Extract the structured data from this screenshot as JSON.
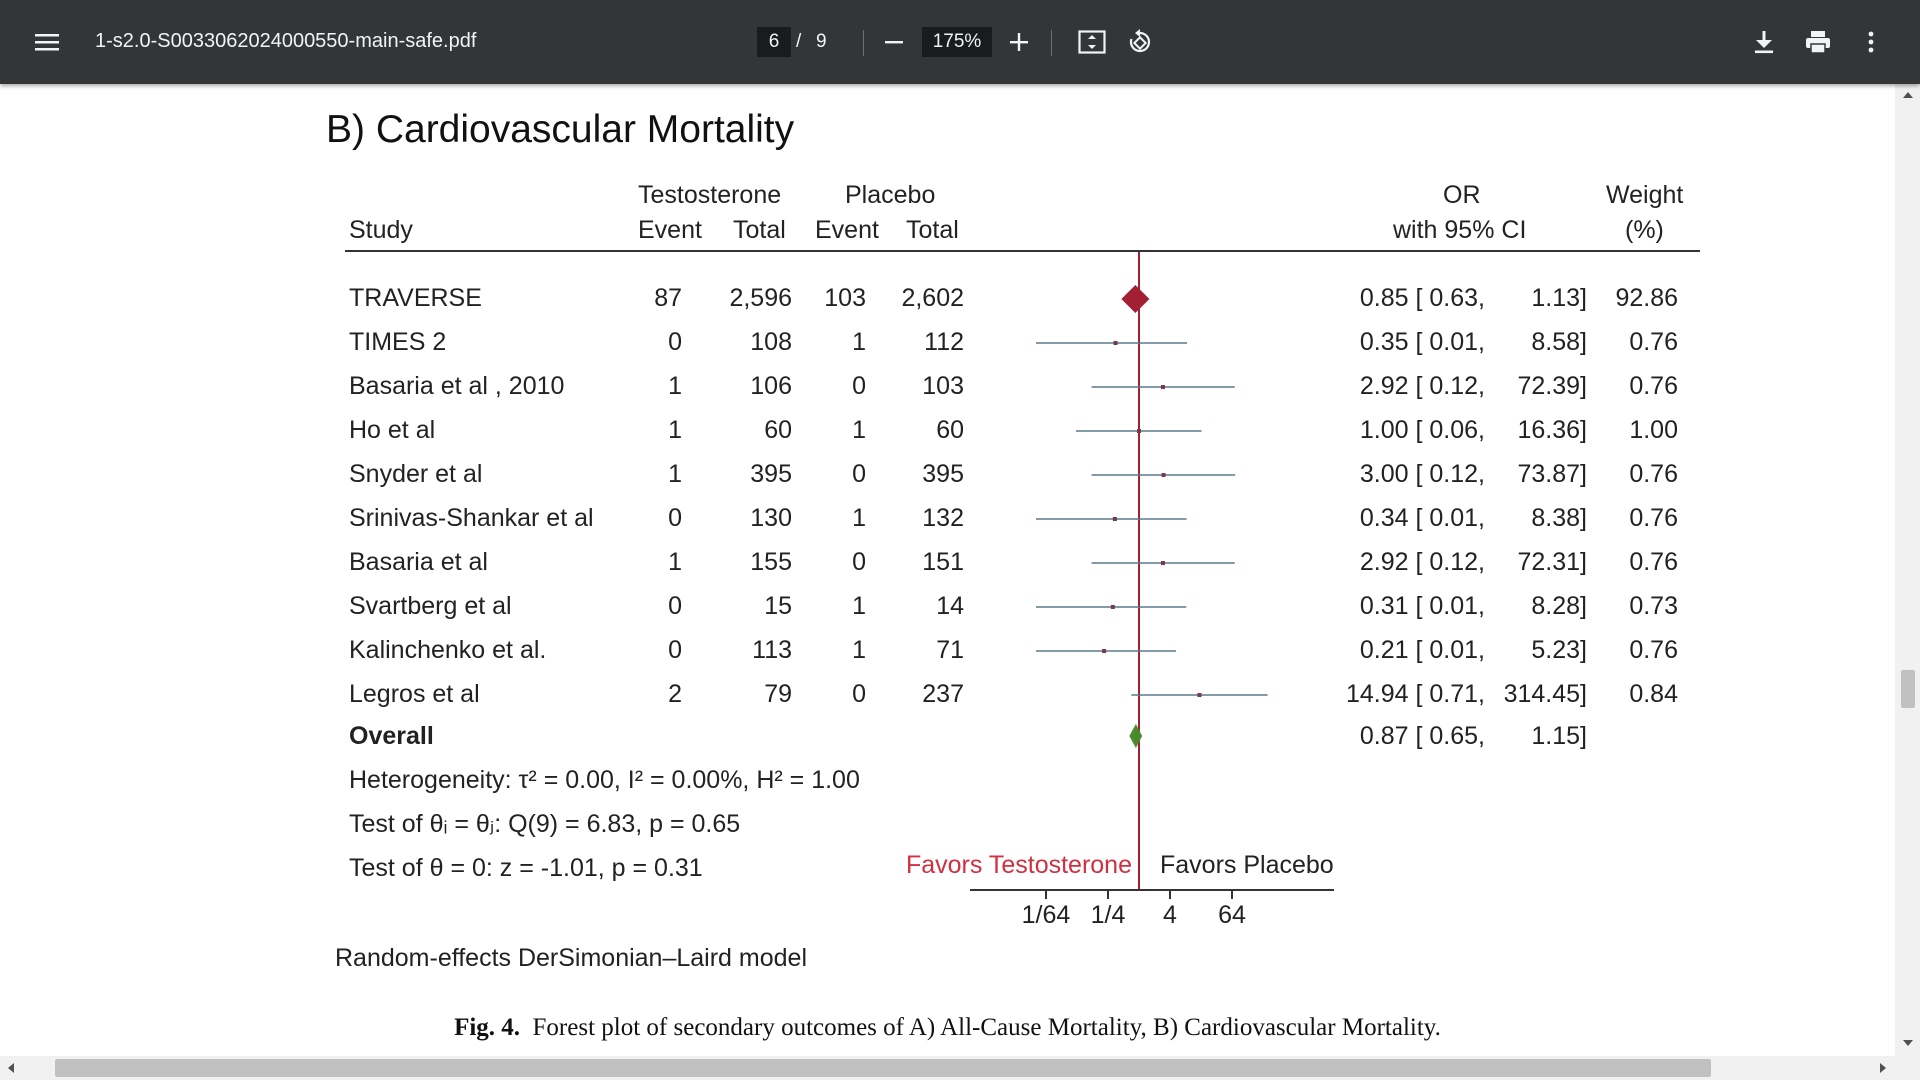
{
  "toolbar": {
    "title": "1-s2.0-S0033062024000550-main-safe.pdf",
    "page_current": "6",
    "page_separator": "/",
    "page_total": "9",
    "zoom": "175%",
    "icons": [
      "menu-icon",
      "zoom-out-icon",
      "zoom-in-icon",
      "fit-page-icon",
      "rotate-icon",
      "download-icon",
      "print-icon",
      "more-vert-icon"
    ]
  },
  "figure": {
    "heading": "B) Cardiovascular Mortality",
    "col_headers": {
      "testosterone": "Testosterone",
      "placebo": "Placebo",
      "study": "Study",
      "event1": "Event",
      "total1": "Total",
      "event2": "Event",
      "total2": "Total",
      "or": "OR",
      "ci": "with 95% CI",
      "weight": "Weight",
      "weight_unit": "(%)"
    },
    "overall_label": "Overall",
    "overall_or": "0.87 [ 0.65,",
    "overall_hi": "1.15]",
    "heterogeneity": "Heterogeneity: τ² = 0.00, I² = 0.00%, H² = 1.00",
    "test_equal": "Test of θᵢ = θⱼ: Q(9) = 6.83, p = 0.65",
    "test_zero": "Test of θ = 0: z = -1.01, p = 0.31",
    "favors_left": "Favors Testosterone",
    "favors_right": "Favors Placebo",
    "x_ticks": [
      "1/64",
      "1/4",
      "4",
      "64"
    ],
    "model_note": "Random-effects DerSimonian–Laird model",
    "caption_label": "Fig. 4.",
    "caption_text": "Forest plot of secondary outcomes of A) All-Cause Mortality, B) Cardiovascular Mortality."
  },
  "chart_data": {
    "type": "forest",
    "x_scale": "log",
    "x_ticks": [
      0.015625,
      0.25,
      4,
      64
    ],
    "null_line": 1,
    "studies": [
      {
        "study": "TRAVERSE",
        "t_event": "87",
        "t_total": "2,596",
        "p_event": "103",
        "p_total": "2,602",
        "or": 0.85,
        "lo": 0.63,
        "hi": 1.13,
        "or_text": "0.85 [ 0.63,",
        "hi_text": "1.13]",
        "weight": "92.86",
        "marker": "diamond",
        "color": "#a31f34"
      },
      {
        "study": "TIMES 2",
        "t_event": "0",
        "t_total": "108",
        "p_event": "1",
        "p_total": "112",
        "or": 0.35,
        "lo": 0.01,
        "hi": 8.58,
        "or_text": "0.35 [ 0.01,",
        "hi_text": "8.58]",
        "weight": "0.76"
      },
      {
        "study": "Basaria et al , 2010",
        "t_event": "1",
        "t_total": "106",
        "p_event": "0",
        "p_total": "103",
        "or": 2.92,
        "lo": 0.12,
        "hi": 72.39,
        "or_text": "2.92 [ 0.12,",
        "hi_text": "72.39]",
        "weight": "0.76"
      },
      {
        "study": "Ho et al",
        "t_event": "1",
        "t_total": "60",
        "p_event": "1",
        "p_total": "60",
        "or": 1.0,
        "lo": 0.06,
        "hi": 16.36,
        "or_text": "1.00 [ 0.06,",
        "hi_text": "16.36]",
        "weight": "1.00"
      },
      {
        "study": "Snyder et al",
        "t_event": "1",
        "t_total": "395",
        "p_event": "0",
        "p_total": "395",
        "or": 3.0,
        "lo": 0.12,
        "hi": 73.87,
        "or_text": "3.00 [ 0.12,",
        "hi_text": "73.87]",
        "weight": "0.76"
      },
      {
        "study": "Srinivas-Shankar et al",
        "t_event": "0",
        "t_total": "130",
        "p_event": "1",
        "p_total": "132",
        "or": 0.34,
        "lo": 0.01,
        "hi": 8.38,
        "or_text": "0.34 [ 0.01,",
        "hi_text": "8.38]",
        "weight": "0.76"
      },
      {
        "study": "Basaria et al",
        "t_event": "1",
        "t_total": "155",
        "p_event": "0",
        "p_total": "151",
        "or": 2.92,
        "lo": 0.12,
        "hi": 72.31,
        "or_text": "2.92 [ 0.12,",
        "hi_text": "72.31]",
        "weight": "0.76"
      },
      {
        "study": "Svartberg et al",
        "t_event": "0",
        "t_total": "15",
        "p_event": "1",
        "p_total": "14",
        "or": 0.31,
        "lo": 0.01,
        "hi": 8.28,
        "or_text": "0.31 [ 0.01,",
        "hi_text": "8.28]",
        "weight": "0.73"
      },
      {
        "study": "Kalinchenko et al.",
        "t_event": "0",
        "t_total": "113",
        "p_event": "1",
        "p_total": "71",
        "or": 0.21,
        "lo": 0.01,
        "hi": 5.23,
        "or_text": "0.21 [ 0.01,",
        "hi_text": "5.23]",
        "weight": "0.76"
      },
      {
        "study": "Legros et al",
        "t_event": "2",
        "t_total": "79",
        "p_event": "0",
        "p_total": "237",
        "or": 14.94,
        "lo": 0.71,
        "hi": 314.45,
        "or_text": "14.94 [ 0.71,",
        "hi_text": "314.45]",
        "weight": "0.84"
      }
    ],
    "overall": {
      "or": 0.87,
      "lo": 0.65,
      "hi": 1.15,
      "color": "#4a8a2a"
    },
    "colors": {
      "null_line": "#a31f34",
      "favors_left": "#d03040",
      "ci_line": "#5a7a8a"
    }
  }
}
